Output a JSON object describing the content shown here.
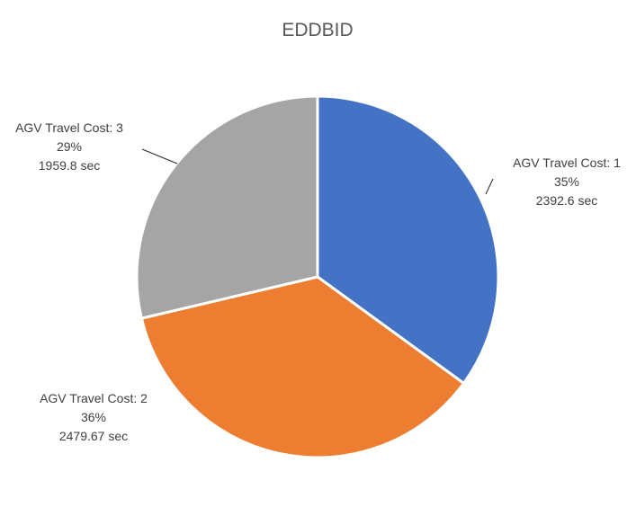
{
  "chart_data": {
    "type": "pie",
    "title": "EDDBID",
    "categories": [
      "AGV Travel Cost: 1",
      "AGV Travel Cost: 2",
      "AGV Travel Cost: 3"
    ],
    "values": [
      2392.6,
      2479.67,
      1959.8
    ],
    "value_labels": [
      "2392.6  sec",
      "2479.67  sec",
      "1959.8  sec"
    ],
    "percent_labels": [
      "35%",
      "36%",
      "29%"
    ],
    "colors": [
      "#4472C4",
      "#ED7D31",
      "#A5A5A5"
    ],
    "start_angle_deg": 0,
    "direction": "clockwise",
    "legend": "none",
    "data_labels": "outside-with-leader-lines"
  }
}
